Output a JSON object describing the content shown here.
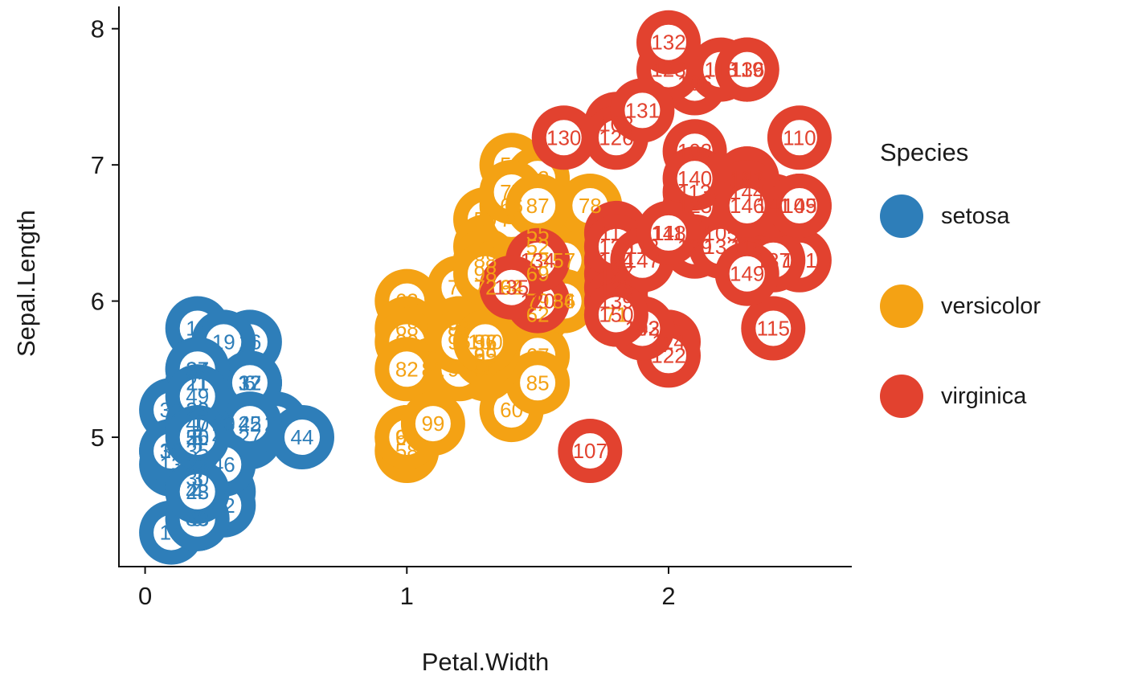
{
  "chart_data": {
    "type": "scatter",
    "title": "",
    "xlabel": "Petal.Width",
    "ylabel": "Sepal.Length",
    "x_ticks": [
      0,
      1,
      2
    ],
    "y_ticks": [
      5,
      6,
      7,
      8
    ],
    "xlim": [
      -0.1,
      2.7
    ],
    "ylim": [
      4.05,
      8.14
    ],
    "grid": false,
    "legend": {
      "title": "Species",
      "position": "right",
      "entries": [
        {
          "label": "setosa",
          "color": "#2E7EB9"
        },
        {
          "label": "versicolor",
          "color": "#F4A214"
        },
        {
          "label": "virginica",
          "color": "#E2422F"
        }
      ]
    },
    "point_style": {
      "outer_radius": 40,
      "inner_radius": 22,
      "inner_fill": "#ffffff",
      "label_font_size": 26
    },
    "axis_color": "#111111",
    "tick_color": "#1a1a1a",
    "series": [
      {
        "name": "setosa",
        "color": "#2E7EB9",
        "points": [
          [
            1,
            0.2,
            5.1
          ],
          [
            2,
            0.2,
            4.9
          ],
          [
            3,
            0.2,
            4.7
          ],
          [
            4,
            0.2,
            4.6
          ],
          [
            5,
            0.2,
            5.0
          ],
          [
            6,
            0.4,
            5.4
          ],
          [
            7,
            0.3,
            4.6
          ],
          [
            8,
            0.2,
            5.0
          ],
          [
            9,
            0.2,
            4.4
          ],
          [
            10,
            0.1,
            4.9
          ],
          [
            11,
            0.2,
            5.4
          ],
          [
            12,
            0.2,
            4.8
          ],
          [
            13,
            0.1,
            4.8
          ],
          [
            14,
            0.1,
            4.3
          ],
          [
            15,
            0.2,
            5.8
          ],
          [
            16,
            0.4,
            5.7
          ],
          [
            17,
            0.4,
            5.4
          ],
          [
            18,
            0.3,
            5.1
          ],
          [
            19,
            0.3,
            5.7
          ],
          [
            20,
            0.3,
            5.1
          ],
          [
            21,
            0.2,
            5.4
          ],
          [
            22,
            0.4,
            5.1
          ],
          [
            23,
            0.2,
            4.6
          ],
          [
            24,
            0.5,
            5.1
          ],
          [
            25,
            0.2,
            4.8
          ],
          [
            26,
            0.2,
            5.0
          ],
          [
            27,
            0.4,
            5.0
          ],
          [
            28,
            0.2,
            5.2
          ],
          [
            29,
            0.2,
            5.2
          ],
          [
            30,
            0.2,
            4.7
          ],
          [
            31,
            0.2,
            4.8
          ],
          [
            32,
            0.4,
            5.4
          ],
          [
            33,
            0.1,
            5.2
          ],
          [
            34,
            0.2,
            5.5
          ],
          [
            35,
            0.2,
            4.9
          ],
          [
            36,
            0.2,
            5.0
          ],
          [
            37,
            0.2,
            5.5
          ],
          [
            38,
            0.1,
            4.9
          ],
          [
            39,
            0.2,
            4.4
          ],
          [
            40,
            0.2,
            5.1
          ],
          [
            41,
            0.3,
            5.0
          ],
          [
            42,
            0.3,
            4.5
          ],
          [
            43,
            0.2,
            4.4
          ],
          [
            44,
            0.6,
            5.0
          ],
          [
            45,
            0.4,
            5.1
          ],
          [
            46,
            0.3,
            4.8
          ],
          [
            47,
            0.2,
            5.1
          ],
          [
            48,
            0.2,
            4.6
          ],
          [
            49,
            0.2,
            5.3
          ],
          [
            50,
            0.2,
            5.0
          ]
        ]
      },
      {
        "name": "versicolor",
        "color": "#F4A214",
        "points": [
          [
            51,
            1.4,
            7.0
          ],
          [
            52,
            1.5,
            6.4
          ],
          [
            53,
            1.5,
            6.9
          ],
          [
            54,
            1.3,
            5.5
          ],
          [
            55,
            1.5,
            6.5
          ],
          [
            56,
            1.3,
            5.7
          ],
          [
            57,
            1.6,
            6.3
          ],
          [
            58,
            1.0,
            4.9
          ],
          [
            59,
            1.3,
            6.6
          ],
          [
            60,
            1.4,
            5.2
          ],
          [
            61,
            1.0,
            5.0
          ],
          [
            62,
            1.5,
            5.9
          ],
          [
            63,
            1.0,
            6.0
          ],
          [
            64,
            1.4,
            6.1
          ],
          [
            65,
            1.3,
            5.6
          ],
          [
            66,
            1.4,
            6.7
          ],
          [
            67,
            1.5,
            5.6
          ],
          [
            68,
            1.0,
            5.8
          ],
          [
            69,
            1.5,
            6.2
          ],
          [
            70,
            1.1,
            5.6
          ],
          [
            71,
            1.8,
            5.9
          ],
          [
            72,
            1.3,
            6.1
          ],
          [
            73,
            1.5,
            6.3
          ],
          [
            74,
            1.2,
            6.1
          ],
          [
            75,
            1.3,
            6.4
          ],
          [
            76,
            1.4,
            6.6
          ],
          [
            77,
            1.4,
            6.8
          ],
          [
            78,
            1.7,
            6.7
          ],
          [
            79,
            1.5,
            6.0
          ],
          [
            80,
            1.0,
            5.7
          ],
          [
            81,
            1.1,
            5.5
          ],
          [
            82,
            1.0,
            5.5
          ],
          [
            83,
            1.2,
            5.8
          ],
          [
            84,
            1.6,
            6.0
          ],
          [
            85,
            1.5,
            5.4
          ],
          [
            86,
            1.6,
            6.0
          ],
          [
            87,
            1.5,
            6.7
          ],
          [
            88,
            1.3,
            6.3
          ],
          [
            89,
            1.3,
            5.6
          ],
          [
            90,
            1.3,
            5.5
          ],
          [
            91,
            1.2,
            5.5
          ],
          [
            92,
            1.4,
            6.1
          ],
          [
            93,
            1.2,
            5.8
          ],
          [
            94,
            1.0,
            5.0
          ],
          [
            95,
            1.3,
            5.6
          ],
          [
            96,
            1.2,
            5.7
          ],
          [
            97,
            1.3,
            5.7
          ],
          [
            98,
            1.3,
            6.2
          ],
          [
            99,
            1.1,
            5.1
          ],
          [
            100,
            1.3,
            5.7
          ]
        ]
      },
      {
        "name": "virginica",
        "color": "#E2422F",
        "points": [
          [
            101,
            2.5,
            6.3
          ],
          [
            102,
            1.9,
            5.8
          ],
          [
            103,
            2.1,
            7.1
          ],
          [
            104,
            1.8,
            6.3
          ],
          [
            105,
            2.2,
            6.5
          ],
          [
            106,
            2.1,
            7.6
          ],
          [
            107,
            1.7,
            4.9
          ],
          [
            108,
            1.8,
            7.3
          ],
          [
            109,
            2.5,
            6.7
          ],
          [
            110,
            2.5,
            7.2
          ],
          [
            111,
            2.0,
            6.5
          ],
          [
            112,
            1.9,
            6.4
          ],
          [
            113,
            2.1,
            6.8
          ],
          [
            114,
            2.0,
            5.7
          ],
          [
            115,
            2.4,
            5.8
          ],
          [
            116,
            2.3,
            6.4
          ],
          [
            117,
            1.8,
            6.5
          ],
          [
            118,
            2.2,
            7.7
          ],
          [
            119,
            2.3,
            7.7
          ],
          [
            120,
            1.5,
            6.0
          ],
          [
            121,
            2.3,
            6.9
          ],
          [
            122,
            2.0,
            5.6
          ],
          [
            123,
            2.0,
            7.7
          ],
          [
            124,
            1.8,
            6.3
          ],
          [
            125,
            2.1,
            6.7
          ],
          [
            126,
            1.8,
            7.2
          ],
          [
            127,
            1.8,
            6.2
          ],
          [
            128,
            1.8,
            6.1
          ],
          [
            129,
            2.1,
            6.4
          ],
          [
            130,
            1.6,
            7.2
          ],
          [
            131,
            1.9,
            7.4
          ],
          [
            132,
            2.0,
            7.9
          ],
          [
            133,
            2.2,
            6.4
          ],
          [
            134,
            1.5,
            6.3
          ],
          [
            135,
            1.4,
            6.1
          ],
          [
            136,
            2.3,
            7.7
          ],
          [
            137,
            2.4,
            6.3
          ],
          [
            138,
            1.8,
            6.4
          ],
          [
            139,
            1.8,
            6.0
          ],
          [
            140,
            2.1,
            6.9
          ],
          [
            141,
            2.4,
            6.7
          ],
          [
            142,
            2.3,
            6.9
          ],
          [
            143,
            1.9,
            5.8
          ],
          [
            144,
            2.3,
            6.8
          ],
          [
            145,
            2.5,
            6.7
          ],
          [
            146,
            2.3,
            6.7
          ],
          [
            147,
            1.9,
            6.3
          ],
          [
            148,
            2.0,
            6.5
          ],
          [
            149,
            2.3,
            6.2
          ],
          [
            150,
            1.8,
            5.9
          ]
        ]
      }
    ]
  }
}
